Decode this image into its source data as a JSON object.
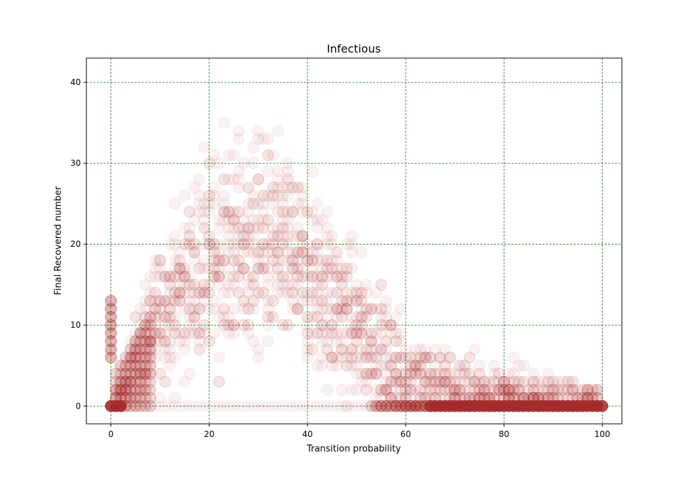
{
  "chart_data": {
    "type": "scatter",
    "title": "Infectious",
    "xlabel": "Transition probability",
    "ylabel": "Final Recovered number",
    "xlim": [
      -5,
      104
    ],
    "ylim": [
      -2.2,
      43
    ],
    "x_ticks": [
      0,
      20,
      40,
      60,
      80,
      100
    ],
    "y_ticks": [
      0,
      10,
      20,
      30,
      40
    ],
    "grid": true,
    "grid_color": "#008000",
    "marker_color": "#a52a2a",
    "marker_alpha": 0.06,
    "series": [
      {
        "description_of_density": "envelope",
        "envelope": {
          "x": [
            0,
            3,
            6,
            10,
            15,
            20,
            25,
            30,
            35,
            40,
            45,
            50,
            55,
            60,
            65,
            70,
            80,
            90,
            100
          ],
          "center": [
            0,
            2,
            7,
            11,
            15,
            18,
            19.5,
            19.5,
            19,
            16.5,
            13,
            9.5,
            6,
            3,
            2,
            1.2,
            0.8,
            0.5,
            0.3
          ],
          "spread": [
            0.5,
            2,
            3,
            4,
            5,
            6,
            6.5,
            6.5,
            6,
            5.5,
            5,
            4.5,
            4,
            3.5,
            3,
            2.5,
            2,
            1.5,
            1
          ]
        }
      }
    ],
    "zero_line_points": {
      "x_range": [
        0,
        100
      ],
      "y": 0
    },
    "zero_start_cluster": {
      "x": 0,
      "y_values": [
        6,
        7,
        8,
        9,
        10,
        11,
        12,
        13
      ]
    }
  }
}
